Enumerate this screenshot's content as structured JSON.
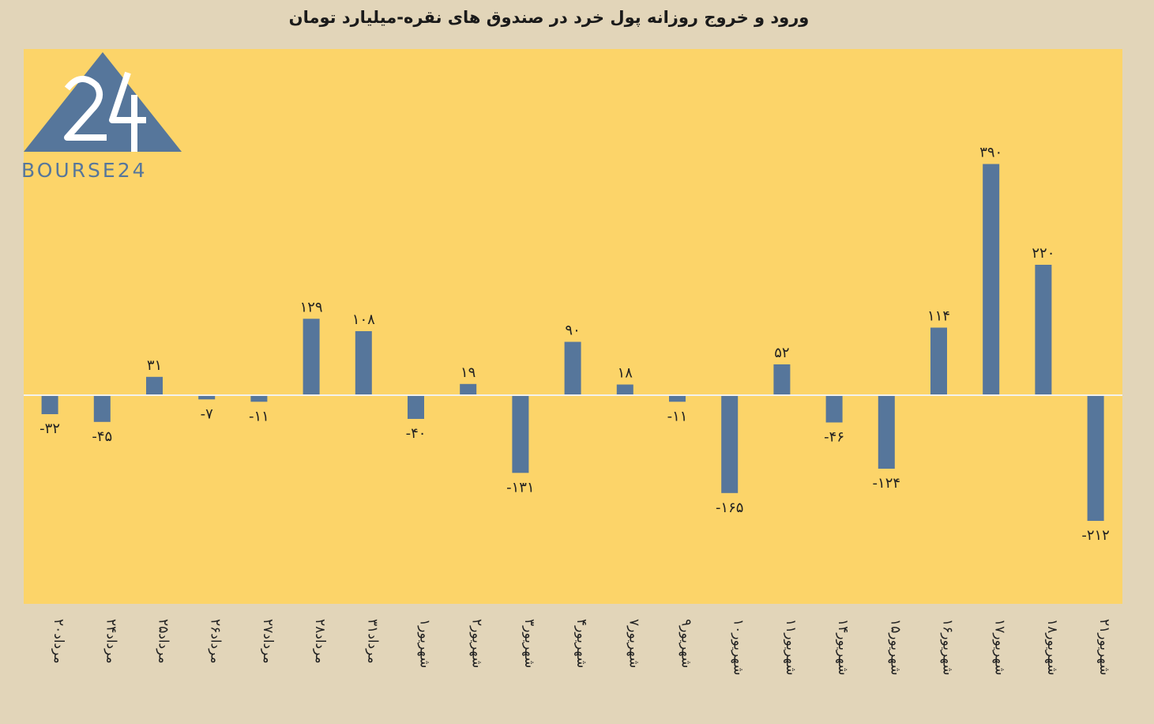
{
  "chart_data": {
    "type": "bar",
    "title": "ورود و خروج روزانه پول خرد در صندوق های نقره-میلیارد تومان",
    "xlabel": "",
    "ylabel": "",
    "ylim": [
      -260,
      440
    ],
    "grid": false,
    "legend": "none",
    "categories": [
      "۲۰مرداد",
      "۲۴مرداد",
      "۲۵مرداد",
      "۲۶مرداد",
      "۲۷مرداد",
      "۲۸مرداد",
      "۳۱مرداد",
      "۱شهریور",
      "۲شهریور",
      "۳شهریور",
      "۴شهریور",
      "۷شهریور",
      "۹شهریور",
      "۱۰شهریور",
      "۱۱شهریور",
      "۱۴شهریور",
      "۱۵شهریور",
      "۱۶شهریور",
      "۱۷شهریور",
      "۱۸شهریور",
      "۲۱شهریور"
    ],
    "values": [
      -32,
      -45,
      31,
      -7,
      -11,
      129,
      108,
      -40,
      19,
      -131,
      90,
      18,
      -11,
      -165,
      52,
      -46,
      -124,
      114,
      390,
      220,
      -212
    ],
    "value_labels": [
      "-۳۲",
      "-۴۵",
      "۳۱",
      "-۷",
      "-۱۱",
      "۱۲۹",
      "۱۰۸",
      "-۴۰",
      "۱۹",
      "-۱۳۱",
      "۹۰",
      "۱۸",
      "-۱۱",
      "-۱۶۵",
      "۵۲",
      "-۴۶",
      "-۱۲۴",
      "۱۱۴",
      "۳۹۰",
      "۲۲۰",
      "-۲۱۲"
    ]
  },
  "colors": {
    "page_background": "#e2d5b9",
    "plot_background": "#fcd469",
    "bar": "#56769b",
    "zero_line": "#f2f2ee"
  },
  "logo": {
    "text": "BOURSE24",
    "mark": "24"
  }
}
